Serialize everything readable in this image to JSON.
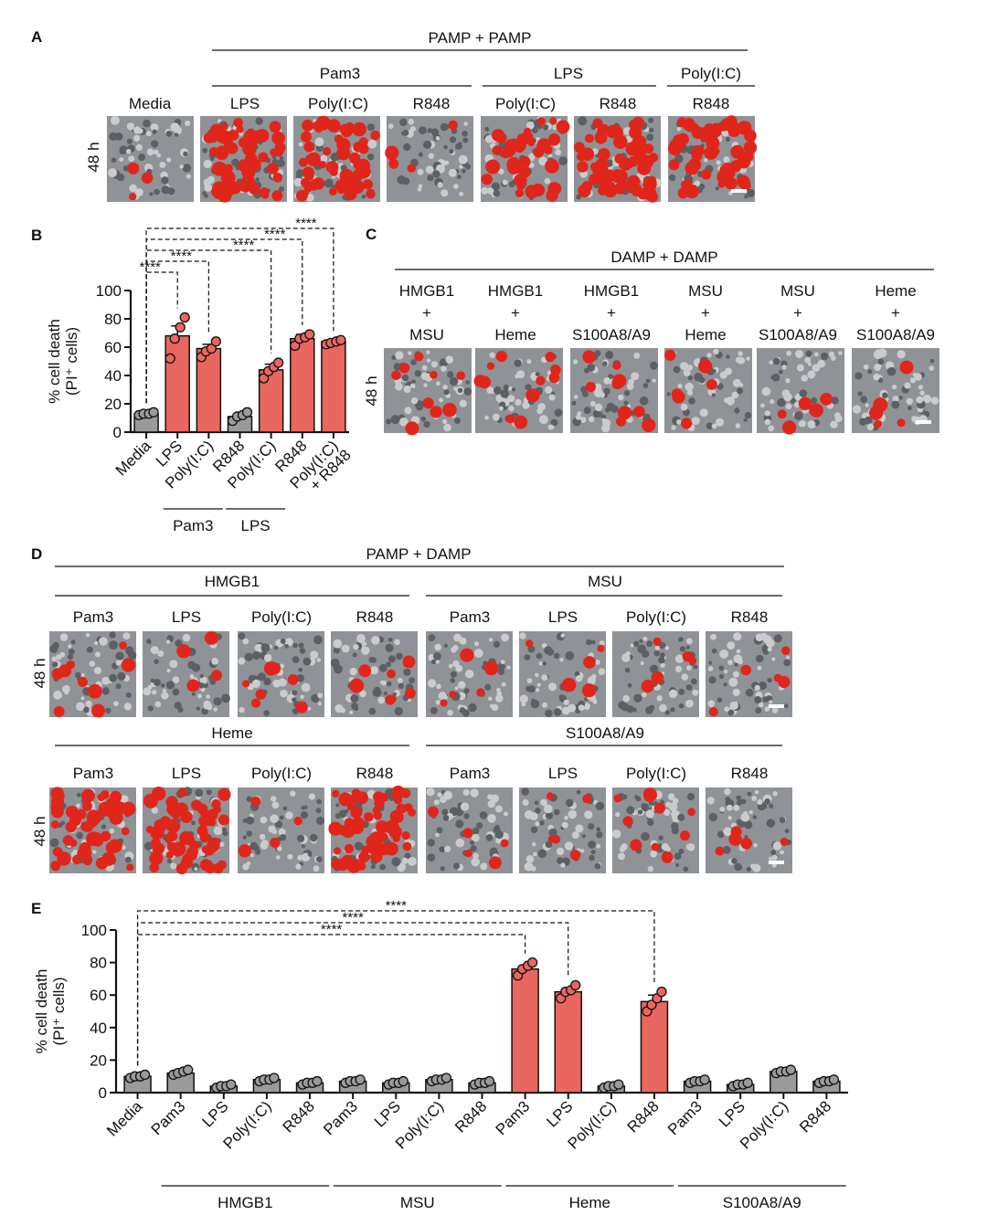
{
  "colors": {
    "bar_red": "#e8675f",
    "bar_gray": "#9a9a9a",
    "dot_edge": "#6e2a26",
    "cell_red": "#e0261a",
    "micro_bg": "#8f9296"
  },
  "panel_a": {
    "letter": "A",
    "header": "PAMP + PAMP",
    "groups": [
      "Pam3",
      "LPS",
      "Poly(I:C)"
    ],
    "columns": [
      "Media",
      "LPS",
      "Poly(I:C)",
      "R848",
      "Poly(I:C)",
      "R848",
      "R848"
    ],
    "time_label": "48 h",
    "red_density": [
      0.03,
      0.62,
      0.55,
      0.04,
      0.4,
      0.65,
      0.6
    ]
  },
  "panel_c": {
    "letter": "C",
    "header": "DAMP + DAMP",
    "plus": "+",
    "columns": [
      {
        "top": "HMGB1",
        "bottom": "MSU"
      },
      {
        "top": "HMGB1",
        "bottom": "Heme"
      },
      {
        "top": "HMGB1",
        "bottom": "S100A8/A9"
      },
      {
        "top": "MSU",
        "bottom": "Heme"
      },
      {
        "top": "MSU",
        "bottom": "S100A8/A9"
      },
      {
        "top": "Heme",
        "bottom": "S100A8/A9"
      }
    ],
    "time_label": "48 h",
    "red_density": [
      0.1,
      0.12,
      0.1,
      0.07,
      0.06,
      0.06
    ]
  },
  "panel_d": {
    "letter": "D",
    "header": "PAMP + DAMP",
    "pamps": [
      "Pam3",
      "LPS",
      "Poly(I:C)",
      "R848"
    ],
    "row1_groups": [
      "HMGB1",
      "MSU"
    ],
    "row2_groups": [
      "Heme",
      "S100A8/A9"
    ],
    "time_label": "48 h",
    "row1_density": [
      0.1,
      0.04,
      0.08,
      0.08,
      0.06,
      0.05,
      0.06,
      0.05
    ],
    "row2_density": [
      0.6,
      0.62,
      0.04,
      0.58,
      0.05,
      0.05,
      0.1,
      0.05
    ]
  },
  "chart_data": [
    {
      "type": "bar",
      "panel": "B",
      "title": "",
      "xlabel": "",
      "ylabel": "% cell death (PI⁺ cells)",
      "ylabel_line1": "% cell death",
      "ylabel_line2": "(PI⁺ cells)",
      "ylim": [
        0,
        100
      ],
      "yticks": [
        0,
        20,
        40,
        60,
        80,
        100
      ],
      "categories": [
        "Media",
        "LPS",
        "Poly(I:C)",
        "R848",
        "Poly(I:C)",
        "R848",
        "Poly(I:C)\n+ R848"
      ],
      "values": [
        13,
        68,
        59,
        11,
        44,
        66,
        64
      ],
      "errors": [
        1,
        7,
        3,
        1,
        4,
        3,
        1
      ],
      "points": [
        [
          12,
          13,
          13,
          14
        ],
        [
          52,
          66,
          74,
          81
        ],
        [
          53,
          57,
          59,
          64
        ],
        [
          8,
          11,
          12,
          14
        ],
        [
          38,
          43,
          46,
          49
        ],
        [
          61,
          66,
          67,
          69
        ],
        [
          62,
          63,
          64,
          65
        ]
      ],
      "bar_colors": [
        "gray",
        "red",
        "red",
        "gray",
        "red",
        "red",
        "red"
      ],
      "group_labels": [
        {
          "label": "Pam3",
          "from": 1,
          "to": 2
        },
        {
          "label": "LPS",
          "from": 3,
          "to": 4
        }
      ],
      "significance": [
        {
          "label": "****",
          "from": 0,
          "to": 1
        },
        {
          "label": "****",
          "from": 0,
          "to": 2
        },
        {
          "label": "****",
          "from": 0,
          "to": 4
        },
        {
          "label": "****",
          "from": 0,
          "to": 5
        },
        {
          "label": "****",
          "from": 0,
          "to": 6
        }
      ]
    },
    {
      "type": "bar",
      "panel": "E",
      "title": "",
      "xlabel": "",
      "ylabel": "% cell death (PI⁺ cells)",
      "ylabel_line1": "% cell death",
      "ylabel_line2": "(PI⁺ cells)",
      "ylim": [
        0,
        100
      ],
      "yticks": [
        0,
        20,
        40,
        60,
        80,
        100
      ],
      "categories": [
        "Media",
        "Pam3",
        "LPS",
        "Poly(I:C)",
        "R848",
        "Pam3",
        "LPS",
        "Poly(I:C)",
        "R848",
        "Pam3",
        "LPS",
        "Poly(I:C)",
        "R848",
        "Pam3",
        "LPS",
        "Poly(I:C)",
        "R848"
      ],
      "values": [
        10,
        12,
        4,
        8,
        6,
        7,
        6,
        8,
        6,
        76,
        62,
        4,
        56,
        7,
        5,
        13,
        7
      ],
      "errors": [
        1,
        2,
        1,
        1,
        1,
        1,
        1,
        1,
        1,
        2,
        2,
        1,
        4,
        1,
        1,
        1,
        1
      ],
      "points": [
        [
          9,
          10,
          10,
          11
        ],
        [
          11,
          12,
          13,
          14
        ],
        [
          3,
          4,
          4,
          5
        ],
        [
          7,
          8,
          8,
          9
        ],
        [
          5,
          6,
          6,
          7
        ],
        [
          6,
          7,
          7,
          8
        ],
        [
          5,
          6,
          6,
          7
        ],
        [
          7,
          8,
          8,
          9
        ],
        [
          5,
          6,
          6,
          7
        ],
        [
          72,
          76,
          78,
          80
        ],
        [
          58,
          62,
          63,
          66
        ],
        [
          3,
          4,
          4,
          5
        ],
        [
          50,
          54,
          58,
          62
        ],
        [
          6,
          7,
          7,
          8
        ],
        [
          4,
          5,
          5,
          6
        ],
        [
          12,
          13,
          13,
          14
        ],
        [
          6,
          7,
          7,
          8
        ]
      ],
      "bar_colors": [
        "gray",
        "gray",
        "gray",
        "gray",
        "gray",
        "gray",
        "gray",
        "gray",
        "gray",
        "red",
        "red",
        "gray",
        "red",
        "gray",
        "gray",
        "gray",
        "gray"
      ],
      "group_labels": [
        {
          "label": "HMGB1",
          "from": 1,
          "to": 4
        },
        {
          "label": "MSU",
          "from": 5,
          "to": 8
        },
        {
          "label": "Heme",
          "from": 9,
          "to": 12
        },
        {
          "label": "S100A8/A9",
          "from": 13,
          "to": 16
        }
      ],
      "significance": [
        {
          "label": "****",
          "from": 0,
          "to": 9
        },
        {
          "label": "****",
          "from": 0,
          "to": 10
        },
        {
          "label": "****",
          "from": 0,
          "to": 12
        }
      ]
    }
  ]
}
